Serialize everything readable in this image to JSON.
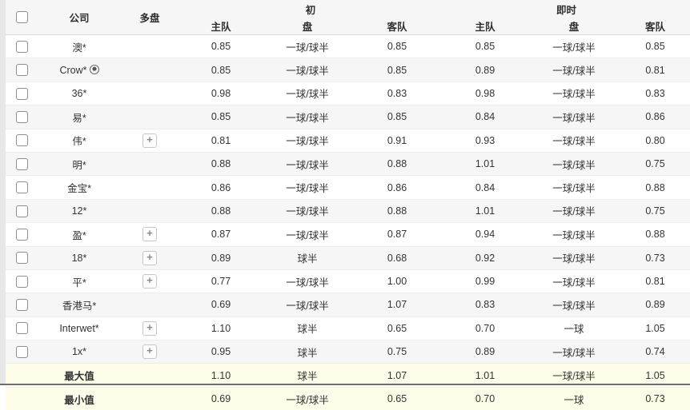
{
  "icons": {
    "plus": "+",
    "soccer_ball": "soccer-ball"
  },
  "table": {
    "group_headers": {
      "initial": "初",
      "live": "即时"
    },
    "columns": {
      "company": "公司",
      "multi": "多盘",
      "home": "主队",
      "handicap": "盘",
      "away": "客队"
    },
    "rows": [
      {
        "company": "澳*",
        "soccer_icon": false,
        "multi_button": false,
        "initial": {
          "home": "0.85",
          "handicap": "一球/球半",
          "away": "0.85"
        },
        "live": {
          "home": "0.85",
          "handicap": "一球/球半",
          "away": "0.85"
        }
      },
      {
        "company": "Crow*",
        "soccer_icon": true,
        "multi_button": false,
        "initial": {
          "home": "0.85",
          "handicap": "一球/球半",
          "away": "0.85"
        },
        "live": {
          "home": "0.89",
          "handicap": "一球/球半",
          "away": "0.81"
        }
      },
      {
        "company": "36*",
        "soccer_icon": false,
        "multi_button": false,
        "initial": {
          "home": "0.98",
          "handicap": "一球/球半",
          "away": "0.83"
        },
        "live": {
          "home": "0.98",
          "handicap": "一球/球半",
          "away": "0.83"
        }
      },
      {
        "company": "易*",
        "soccer_icon": false,
        "multi_button": false,
        "initial": {
          "home": "0.85",
          "handicap": "一球/球半",
          "away": "0.85"
        },
        "live": {
          "home": "0.84",
          "handicap": "一球/球半",
          "away": "0.86"
        }
      },
      {
        "company": "伟*",
        "soccer_icon": false,
        "multi_button": true,
        "initial": {
          "home": "0.81",
          "handicap": "一球/球半",
          "away": "0.91"
        },
        "live": {
          "home": "0.93",
          "handicap": "一球/球半",
          "away": "0.80"
        }
      },
      {
        "company": "明*",
        "soccer_icon": false,
        "multi_button": false,
        "initial": {
          "home": "0.88",
          "handicap": "一球/球半",
          "away": "0.88"
        },
        "live": {
          "home": "1.01",
          "handicap": "一球/球半",
          "away": "0.75"
        }
      },
      {
        "company": "金宝*",
        "soccer_icon": false,
        "multi_button": false,
        "initial": {
          "home": "0.86",
          "handicap": "一球/球半",
          "away": "0.86"
        },
        "live": {
          "home": "0.84",
          "handicap": "一球/球半",
          "away": "0.88"
        }
      },
      {
        "company": "12*",
        "soccer_icon": false,
        "multi_button": false,
        "initial": {
          "home": "0.88",
          "handicap": "一球/球半",
          "away": "0.88"
        },
        "live": {
          "home": "1.01",
          "handicap": "一球/球半",
          "away": "0.75"
        }
      },
      {
        "company": "盈*",
        "soccer_icon": false,
        "multi_button": true,
        "initial": {
          "home": "0.87",
          "handicap": "一球/球半",
          "away": "0.87"
        },
        "live": {
          "home": "0.94",
          "handicap": "一球/球半",
          "away": "0.88"
        }
      },
      {
        "company": "18*",
        "soccer_icon": false,
        "multi_button": true,
        "initial": {
          "home": "0.89",
          "handicap": "球半",
          "away": "0.68"
        },
        "live": {
          "home": "0.92",
          "handicap": "一球/球半",
          "away": "0.73"
        }
      },
      {
        "company": "平*",
        "soccer_icon": false,
        "multi_button": true,
        "initial": {
          "home": "0.77",
          "handicap": "一球/球半",
          "away": "1.00"
        },
        "live": {
          "home": "0.99",
          "handicap": "一球/球半",
          "away": "0.81"
        }
      },
      {
        "company": "香港马*",
        "soccer_icon": false,
        "multi_button": false,
        "initial": {
          "home": "0.69",
          "handicap": "一球/球半",
          "away": "1.07"
        },
        "live": {
          "home": "0.83",
          "handicap": "一球/球半",
          "away": "0.89"
        }
      },
      {
        "company": "Interwet*",
        "soccer_icon": false,
        "multi_button": true,
        "initial": {
          "home": "1.10",
          "handicap": "球半",
          "away": "0.65"
        },
        "live": {
          "home": "0.70",
          "handicap": "一球",
          "away": "1.05"
        }
      },
      {
        "company": "1x*",
        "soccer_icon": false,
        "multi_button": true,
        "initial": {
          "home": "0.95",
          "handicap": "球半",
          "away": "0.75"
        },
        "live": {
          "home": "0.89",
          "handicap": "一球/球半",
          "away": "0.74"
        }
      }
    ],
    "summary_rows": [
      {
        "label": "最大值",
        "initial": {
          "home": "1.10",
          "handicap": "球半",
          "away": "1.07"
        },
        "live": {
          "home": "1.01",
          "handicap": "一球/球半",
          "away": "1.05"
        }
      },
      {
        "label": "最小值",
        "initial": {
          "home": "0.69",
          "handicap": "一球/球半",
          "away": "0.65"
        },
        "live": {
          "home": "0.70",
          "handicap": "一球",
          "away": "0.73"
        }
      }
    ]
  }
}
